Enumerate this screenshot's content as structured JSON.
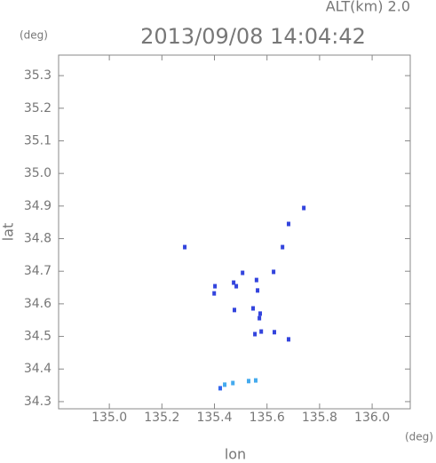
{
  "chart_data": {
    "type": "scatter",
    "title": "2013/09/08 14:04:42",
    "annotation": "ALT(km) 2.0",
    "y_unit": "(deg)",
    "x_unit": "(deg)",
    "xlabel": "lon",
    "ylabel": "lat",
    "x": [
      135.287,
      135.682,
      135.74,
      135.659,
      135.402,
      135.399,
      135.473,
      135.507,
      135.483,
      135.56,
      135.564,
      135.625,
      135.547,
      135.574,
      135.571,
      135.578,
      135.554,
      135.476,
      135.628,
      135.682,
      135.439,
      135.47,
      135.53,
      135.422,
      135.557
    ],
    "values": [
      34.774,
      34.845,
      34.894,
      34.774,
      34.654,
      34.632,
      34.665,
      34.695,
      34.654,
      34.673,
      34.641,
      34.698,
      34.586,
      34.57,
      34.556,
      34.515,
      34.507,
      34.581,
      34.513,
      34.491,
      34.352,
      34.357,
      34.363,
      34.341,
      34.365
    ],
    "colors": [
      "#3344dd",
      "#3344dd",
      "#3344dd",
      "#3344dd",
      "#3344dd",
      "#3344dd",
      "#3344dd",
      "#3344dd",
      "#3344dd",
      "#3344dd",
      "#3344dd",
      "#3344dd",
      "#3344dd",
      "#3344dd",
      "#3344dd",
      "#3344dd",
      "#3344dd",
      "#3344dd",
      "#3344dd",
      "#3344dd",
      "#44aaee",
      "#44aaee",
      "#44aaee",
      "#3366ee",
      "#44aaee"
    ],
    "xlim": [
      134.807,
      136.145
    ],
    "ylim": [
      34.278,
      35.363
    ],
    "xticks": [
      {
        "value": 135,
        "label": "135.0"
      },
      135.2,
      135.4,
      135.6,
      135.8,
      {
        "value": 136,
        "label": "136.0"
      }
    ],
    "yticks": [
      34.3,
      34.4,
      34.5,
      34.6,
      34.7,
      34.8,
      34.9,
      {
        "value": 35,
        "label": "35.0"
      },
      35.1,
      35.2,
      35.3
    ]
  }
}
